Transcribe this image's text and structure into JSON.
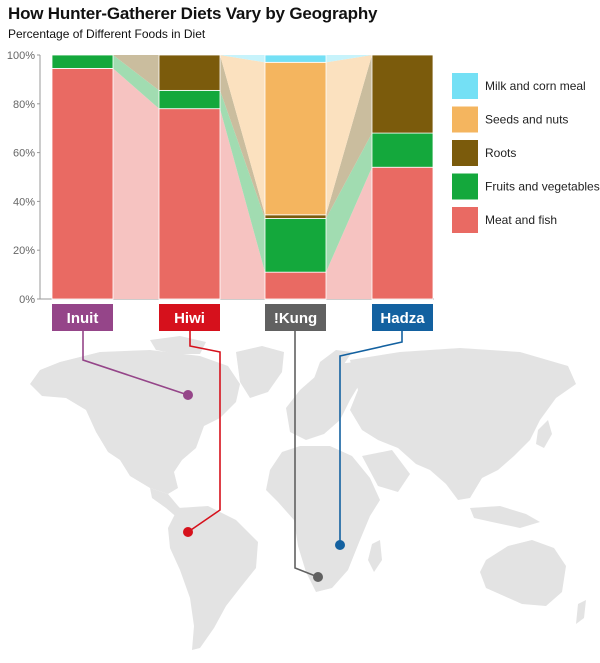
{
  "title": "How Hunter-Gatherer Diets Vary by Geography",
  "subtitle": "Percentage of Different Foods in Diet",
  "colors": {
    "meat_and_fish": "#e96a63",
    "fruits_and_vegetables": "#14a83c",
    "roots": "#7b5b0c",
    "seeds_and_nuts": "#f4b55f",
    "milk_and_corn_meal": "#74e0f5",
    "inuit": "#954589",
    "hiwi": "#d6111c",
    "kung": "#616161",
    "hadza": "#1361a0",
    "map": "#e3e3e3"
  },
  "chart_data": {
    "type": "bar",
    "stacked": true,
    "title": "How Hunter-Gatherer Diets Vary by Geography",
    "subtitle": "Percentage of Different Foods in Diet",
    "categories": [
      "Inuit",
      "Hiwi",
      "!Kung",
      "Hadza"
    ],
    "yticks": [
      "0%",
      "20%",
      "40%",
      "60%",
      "80%",
      "100%"
    ],
    "ylim": [
      0,
      100
    ],
    "series": [
      {
        "name": "Meat and fish",
        "values": [
          94.5,
          78,
          11,
          54
        ]
      },
      {
        "name": "Fruits and vegetables",
        "values": [
          5.5,
          7.5,
          22,
          14
        ]
      },
      {
        "name": "Roots",
        "values": [
          0,
          14.5,
          1.5,
          32
        ]
      },
      {
        "name": "Seeds and nuts",
        "values": [
          0,
          0,
          62.5,
          0
        ]
      },
      {
        "name": "Milk and corn meal",
        "values": [
          0,
          0,
          3,
          0
        ]
      }
    ],
    "legend_position": "right"
  },
  "legend": [
    {
      "label": "Milk and corn meal",
      "color_key": "milk_and_corn_meal"
    },
    {
      "label": "Seeds and nuts",
      "color_key": "seeds_and_nuts"
    },
    {
      "label": "Roots",
      "color_key": "roots"
    },
    {
      "label": "Fruits and vegetables",
      "color_key": "fruits_and_vegetables"
    },
    {
      "label": "Meat and fish",
      "color_key": "meat_and_fish"
    }
  ],
  "regions": [
    {
      "label": "Inuit",
      "color_key": "inuit"
    },
    {
      "label": "Hiwi",
      "color_key": "hiwi"
    },
    {
      "label": "!Kung",
      "color_key": "kung"
    },
    {
      "label": "Hadza",
      "color_key": "hadza"
    }
  ]
}
